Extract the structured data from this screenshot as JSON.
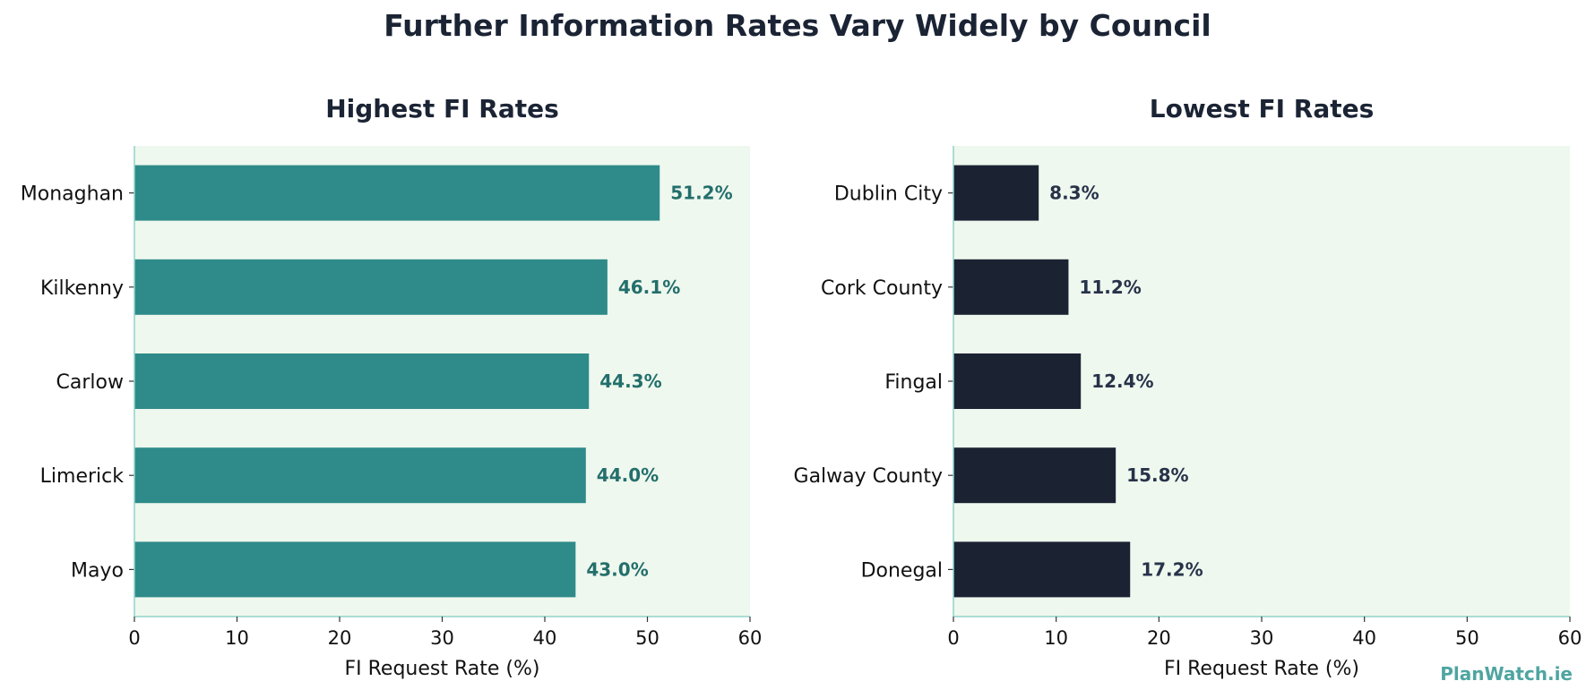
{
  "title": "Further Information Rates Vary Widely by Council",
  "watermark": "PlanWatch.ie",
  "chart_data": [
    {
      "type": "bar",
      "orientation": "horizontal",
      "title": "Highest FI Rates",
      "xlabel": "FI Request Rate (%)",
      "ylabel": "",
      "xlim": [
        0,
        60
      ],
      "xticks": [
        0,
        10,
        20,
        30,
        40,
        50,
        60
      ],
      "categories": [
        "Monaghan",
        "Kilkenny",
        "Carlow",
        "Limerick",
        "Mayo"
      ],
      "values": [
        51.2,
        46.1,
        44.3,
        44.0,
        43.0
      ],
      "value_labels": [
        "51.2%",
        "46.1%",
        "44.3%",
        "44.0%",
        "43.0%"
      ],
      "bar_color": "#2e8b8a",
      "label_color": "#236f6c",
      "background_color": "#eff8ee",
      "grid": false
    },
    {
      "type": "bar",
      "orientation": "horizontal",
      "title": "Lowest FI Rates",
      "xlabel": "FI Request Rate (%)",
      "ylabel": "",
      "xlim": [
        0,
        60
      ],
      "xticks": [
        0,
        10,
        20,
        30,
        40,
        50,
        60
      ],
      "categories": [
        "Dublin City",
        "Cork County",
        "Fingal",
        "Galway County",
        "Donegal"
      ],
      "values": [
        8.3,
        11.2,
        12.4,
        15.8,
        17.2
      ],
      "value_labels": [
        "8.3%",
        "11.2%",
        "12.4%",
        "15.8%",
        "17.2%"
      ],
      "bar_color": "#1b2333",
      "label_color": "#27324a",
      "background_color": "#eff8ee",
      "grid": false
    }
  ]
}
